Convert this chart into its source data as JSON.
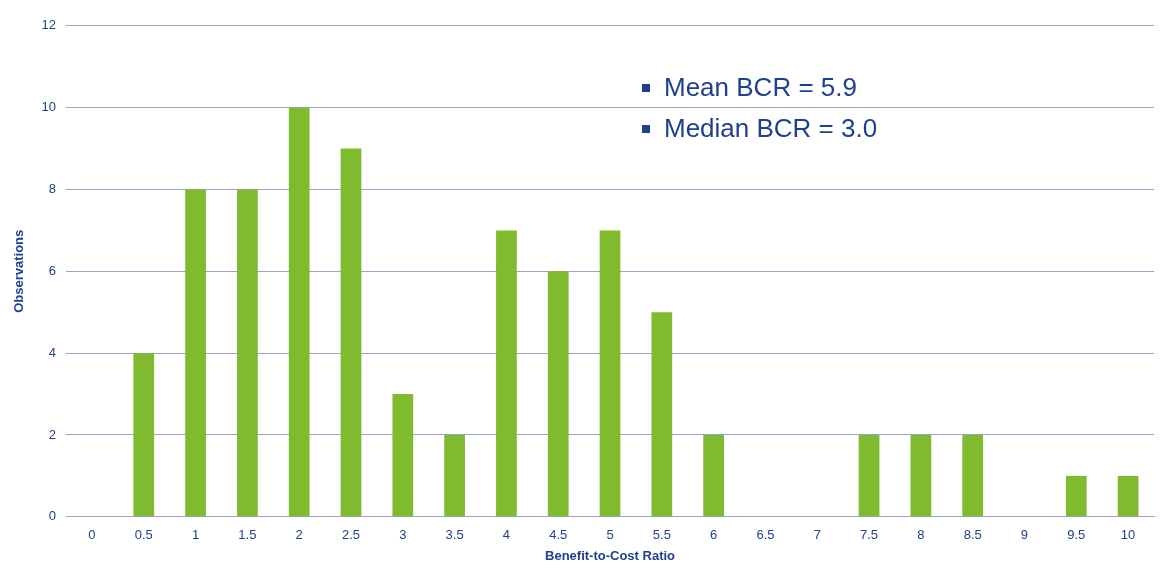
{
  "chart_data": {
    "type": "bar",
    "xlabel": "Benefit-to-Cost Ratio",
    "ylabel": "Observations",
    "categories": [
      "0",
      "0.5",
      "1",
      "1.5",
      "2",
      "2.5",
      "3",
      "3.5",
      "4",
      "4.5",
      "5",
      "5.5",
      "6",
      "6.5",
      "7",
      "7.5",
      "8",
      "8.5",
      "9",
      "9.5",
      "10"
    ],
    "values": [
      0,
      4,
      8,
      8,
      10,
      9,
      3,
      2,
      7,
      6,
      7,
      5,
      2,
      0,
      0,
      2,
      2,
      2,
      0,
      1,
      1
    ],
    "color": "#7fba2f",
    "ylim": [
      0,
      12
    ],
    "yticks": [
      0,
      2,
      4,
      6,
      8,
      10,
      12
    ],
    "grid": "y",
    "legend": false,
    "annotations": [
      "Mean BCR =  5.9",
      "Median BCR = 3.0"
    ]
  }
}
